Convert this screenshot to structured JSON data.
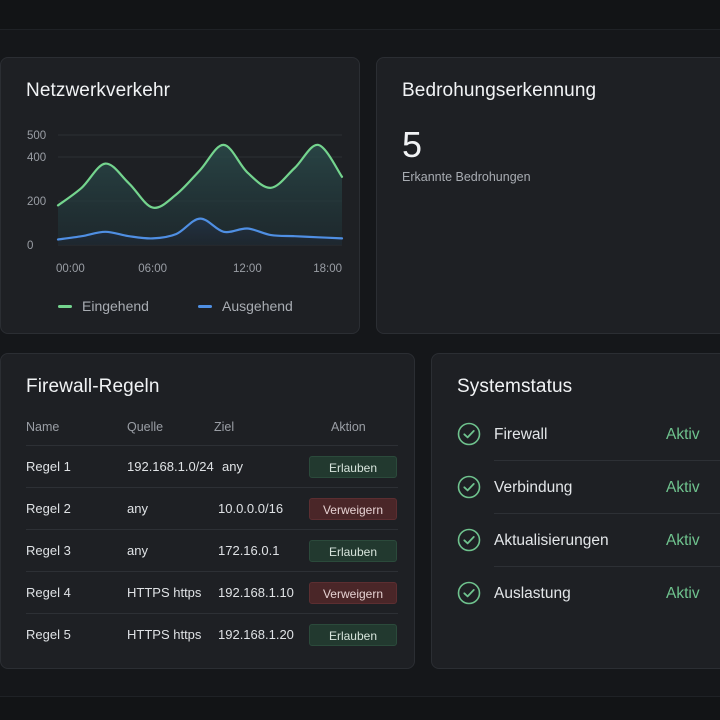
{
  "traffic": {
    "title": "Netzwerkverkehr",
    "legend": {
      "incoming": "Eingehend",
      "outgoing": "Ausgehend"
    },
    "colors": {
      "incoming": "#74d48e",
      "outgoing": "#4f8fe3"
    }
  },
  "chart_data": {
    "type": "area",
    "title": "Netzwerkverkehr",
    "x_ticks": [
      "00:00",
      "06:00",
      "12:00",
      "18:00"
    ],
    "y_ticks": [
      0,
      200,
      400,
      500
    ],
    "ylim": [
      0,
      500
    ],
    "grid": true,
    "legend_position": "bottom",
    "x": [
      0,
      1.5,
      3,
      4.5,
      6,
      7.5,
      9,
      10.5,
      12,
      13.5,
      15,
      16.5,
      18
    ],
    "series": [
      {
        "name": "Eingehend",
        "values": [
          180,
          260,
          370,
          280,
          170,
          230,
          340,
          455,
          330,
          260,
          350,
          455,
          310
        ]
      },
      {
        "name": "Ausgehend",
        "values": [
          25,
          40,
          60,
          40,
          30,
          50,
          120,
          60,
          75,
          45,
          40,
          35,
          30
        ]
      }
    ]
  },
  "threat": {
    "title": "Bedrohungserkennung",
    "count": "5",
    "count_label": "Erkannte Bedrohungen"
  },
  "firewall": {
    "title": "Firewall-Regeln",
    "headers": {
      "name": "Name",
      "source": "Quelle",
      "target": "Ziel",
      "action": "Aktion"
    },
    "rows": [
      {
        "name": "Regel 1",
        "source": "192.168.1.0/24",
        "target": "any",
        "action": "Erlauben",
        "type": "allow"
      },
      {
        "name": "Regel 2",
        "source": "any",
        "target": "10.0.0.0/16",
        "action": "Verweigern",
        "type": "deny"
      },
      {
        "name": "Regel 3",
        "source": "any",
        "target": "172.16.0.1",
        "action": "Erlauben",
        "type": "allow"
      },
      {
        "name": "Regel 4",
        "source": "HTTPS https",
        "target": "192.168.1.10",
        "action": "Verweigern",
        "type": "deny"
      },
      {
        "name": "Regel 5",
        "source": "HTTPS https",
        "target": "192.168.1.20",
        "action": "Erlauben",
        "type": "allow"
      }
    ]
  },
  "status": {
    "title": "Systemstatus",
    "items": [
      {
        "label": "Firewall",
        "value": "Aktiv"
      },
      {
        "label": "Verbindung",
        "value": "Aktiv"
      },
      {
        "label": "Aktualisierungen",
        "value": "Aktiv"
      },
      {
        "label": "Auslastung",
        "value": "Aktiv"
      }
    ],
    "icon": "check-circle-icon",
    "ok_color": "#6fc38e"
  }
}
